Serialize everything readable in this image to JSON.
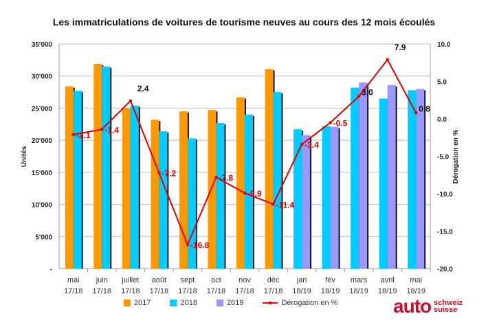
{
  "chart_data": {
    "type": "bar",
    "title": "Les immatriculations de voitures de tourisme neuves au cours des 12 mois écoulés",
    "ylabel": "Unités",
    "y2label": "Dérogation en %",
    "ylim": [
      0,
      35000
    ],
    "y2lim": [
      -20,
      10
    ],
    "yticks": [
      "-",
      "5'000",
      "10'000",
      "15'000",
      "20'000",
      "25'000",
      "30'000",
      "35'000"
    ],
    "y2ticks": [
      "-20.0",
      "-15.0",
      "-10.0",
      "-5.0",
      "0.0",
      "5.0",
      "10.0"
    ],
    "grid": true,
    "legend_position": "bottom",
    "categories": [
      [
        "mai",
        "17/18"
      ],
      [
        "juin",
        "17/18"
      ],
      [
        "juillet",
        "17/18"
      ],
      [
        "août",
        "17/18"
      ],
      [
        "sept",
        "17/18"
      ],
      [
        "oct",
        "17/18"
      ],
      [
        "nov",
        "17/18"
      ],
      [
        "déc",
        "17/18"
      ],
      [
        "jan",
        "18/19"
      ],
      [
        "fév",
        "18/19"
      ],
      [
        "mars",
        "18/19"
      ],
      [
        "avril",
        "18/19"
      ],
      [
        "mai",
        "18/19"
      ]
    ],
    "series": [
      {
        "name": "2017",
        "color": "#ff9900",
        "values": [
          28400,
          31900,
          25000,
          23200,
          24500,
          24700,
          26700,
          31100,
          null,
          null,
          null,
          null,
          null
        ]
      },
      {
        "name": "2018",
        "color": "#00ccff",
        "values": [
          27700,
          31500,
          25400,
          21400,
          20300,
          22700,
          24000,
          27500,
          21700,
          22200,
          28200,
          26500,
          27800
        ]
      },
      {
        "name": "2019",
        "color": "#9999ff",
        "values": [
          null,
          null,
          null,
          null,
          null,
          null,
          null,
          null,
          20800,
          22100,
          29000,
          28600,
          28000
        ]
      },
      {
        "name": "Dérogation en %",
        "type": "line",
        "axis": "right",
        "color": "#e00000",
        "values": [
          -2.1,
          -1.4,
          2.4,
          -7.2,
          -16.8,
          -7.8,
          -9.9,
          -11.4,
          -3.4,
          -0.5,
          3.0,
          7.9,
          0.8
        ],
        "labels": [
          "-2.1",
          "-1.4",
          "2.4",
          "-7.2",
          "-16.8",
          "-7.8",
          "-9.9",
          "-11.4",
          "-3.4",
          "-0.5",
          "3.0",
          "7.9",
          "0.8"
        ]
      }
    ]
  },
  "logo": {
    "main": "auto",
    "line1": "schweiz",
    "line2": "suisse"
  }
}
